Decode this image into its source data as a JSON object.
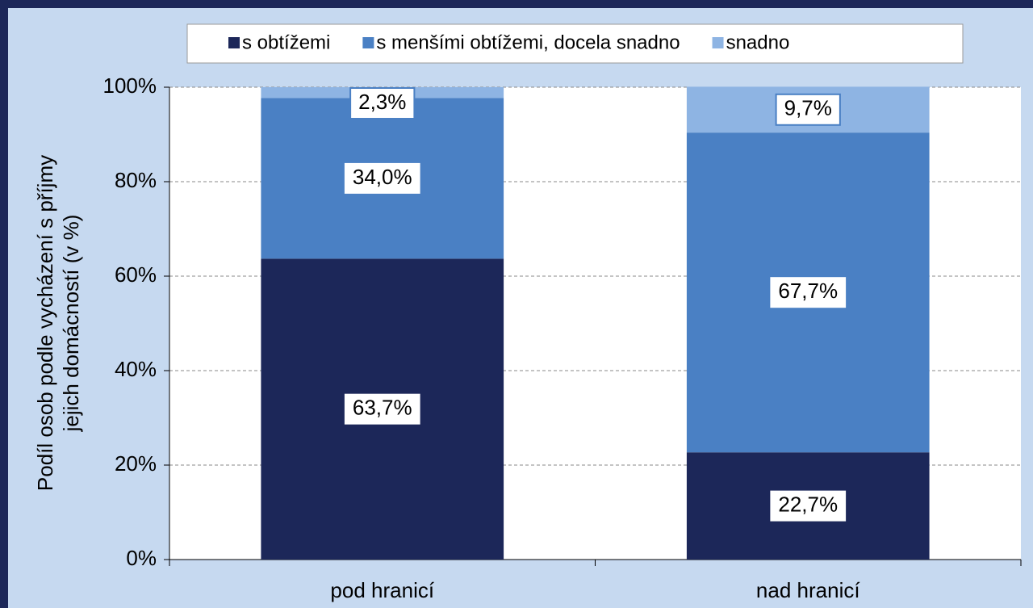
{
  "chart_data": {
    "type": "stacked_bar",
    "ylabel": [
      "Podíl osob podle vycházení s příjmy",
      "jejich domácností (v %)"
    ],
    "categories": [
      "pod hranicí",
      "nad hranicí"
    ],
    "series": [
      {
        "name": "s obtížemi",
        "color": "#1c2759",
        "values": [
          63.7,
          22.7
        ],
        "value_labels": [
          "63,7%",
          "22,7%"
        ]
      },
      {
        "name": "s menšími obtížemi, docela snadno",
        "color": "#4a80c4",
        "values": [
          34.0,
          67.7
        ],
        "value_labels": [
          "34,0%",
          "67,7%"
        ]
      },
      {
        "name": "snadno",
        "color": "#8eb4e3",
        "values": [
          2.3,
          9.7
        ],
        "value_labels": [
          "2,3%",
          "9,7%"
        ]
      }
    ],
    "ylim": [
      0,
      100
    ],
    "yticks": [
      {
        "value": 0,
        "label": "0%"
      },
      {
        "value": 20,
        "label": "20%"
      },
      {
        "value": 40,
        "label": "40%"
      },
      {
        "value": 60,
        "label": "60%"
      },
      {
        "value": 80,
        "label": "80%"
      },
      {
        "value": 100,
        "label": "100%"
      }
    ],
    "grid": true,
    "legend": "top"
  }
}
